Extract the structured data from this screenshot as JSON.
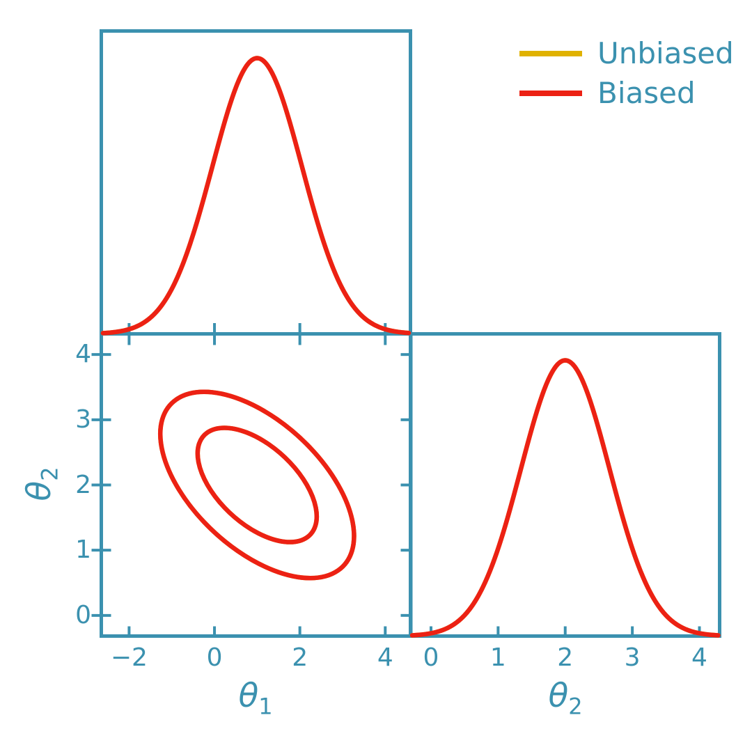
{
  "figure": {
    "background": "#ffffff",
    "accent_color": "#3B91AF",
    "kind": "corner-plot"
  },
  "legend": {
    "items": [
      {
        "label": "Unbiased",
        "color": "#E0B200"
      },
      {
        "label": "Biased",
        "color": "#EC2114"
      }
    ]
  },
  "axis_labels": {
    "theta1": {
      "sym": "θ",
      "sub": "1"
    },
    "theta2": {
      "sym": "θ",
      "sub": "2"
    }
  },
  "chart_data": [
    {
      "id": "theta1-marginal",
      "type": "line",
      "position": "top-left",
      "xlabel": "θ_1",
      "ylabel": "",
      "xlim": [
        -2.61,
        4.55
      ],
      "x_ticks": [
        -2,
        0,
        2,
        4
      ],
      "x_tick_labels_shown": false,
      "grid": false,
      "series": [
        {
          "name": "Unbiased",
          "color": "#E0B200",
          "shape": "gaussian",
          "mean": 1.0,
          "sigma": 1.05,
          "peak": 1.0
        },
        {
          "name": "Biased",
          "color": "#EC2114",
          "shape": "gaussian",
          "mean": 1.0,
          "sigma": 1.05,
          "peak": 1.0
        }
      ],
      "note": "Unbiased and Biased curves coincide exactly; Biased drawn on top"
    },
    {
      "id": "joint-theta1-theta2",
      "type": "contour",
      "position": "bottom-left",
      "xlabel": "θ_1",
      "ylabel": "θ_2",
      "xlim": [
        -2.61,
        4.55
      ],
      "ylim": [
        -0.29,
        4.29
      ],
      "x_ticks": [
        -2,
        0,
        2,
        4
      ],
      "y_ticks": [
        0,
        1,
        2,
        3,
        4
      ],
      "grid": false,
      "series": [
        {
          "name": "Unbiased",
          "color": "#E0B200",
          "center": [
            1.0,
            2.0
          ],
          "angle_deg": -24.4,
          "ellipses": [
            {
              "a": 1.5,
              "b": 0.68
            },
            {
              "a": 2.44,
              "b": 1.11
            }
          ]
        },
        {
          "name": "Biased",
          "color": "#EC2114",
          "center": [
            1.0,
            2.0
          ],
          "angle_deg": -24.4,
          "ellipses": [
            {
              "a": 1.5,
              "b": 0.68
            },
            {
              "a": 2.44,
              "b": 1.11
            }
          ]
        }
      ],
      "note": "inner ≈68% and outer ≈95% credible contours, negatively correlated; contours coincide exactly"
    },
    {
      "id": "theta2-marginal",
      "type": "line",
      "position": "bottom-right",
      "xlabel": "θ_2",
      "ylabel": "",
      "xlim": [
        -0.28,
        4.28
      ],
      "x_ticks": [
        0,
        1,
        2,
        3,
        4
      ],
      "x_tick_labels_shown": true,
      "grid": false,
      "series": [
        {
          "name": "Unbiased",
          "color": "#E0B200",
          "shape": "gaussian",
          "mean": 2.0,
          "sigma": 0.66,
          "peak": 1.0
        },
        {
          "name": "Biased",
          "color": "#EC2114",
          "shape": "gaussian",
          "mean": 2.0,
          "sigma": 0.66,
          "peak": 1.0
        }
      ],
      "note": "Unbiased and Biased curves coincide exactly; Biased drawn on top"
    }
  ]
}
